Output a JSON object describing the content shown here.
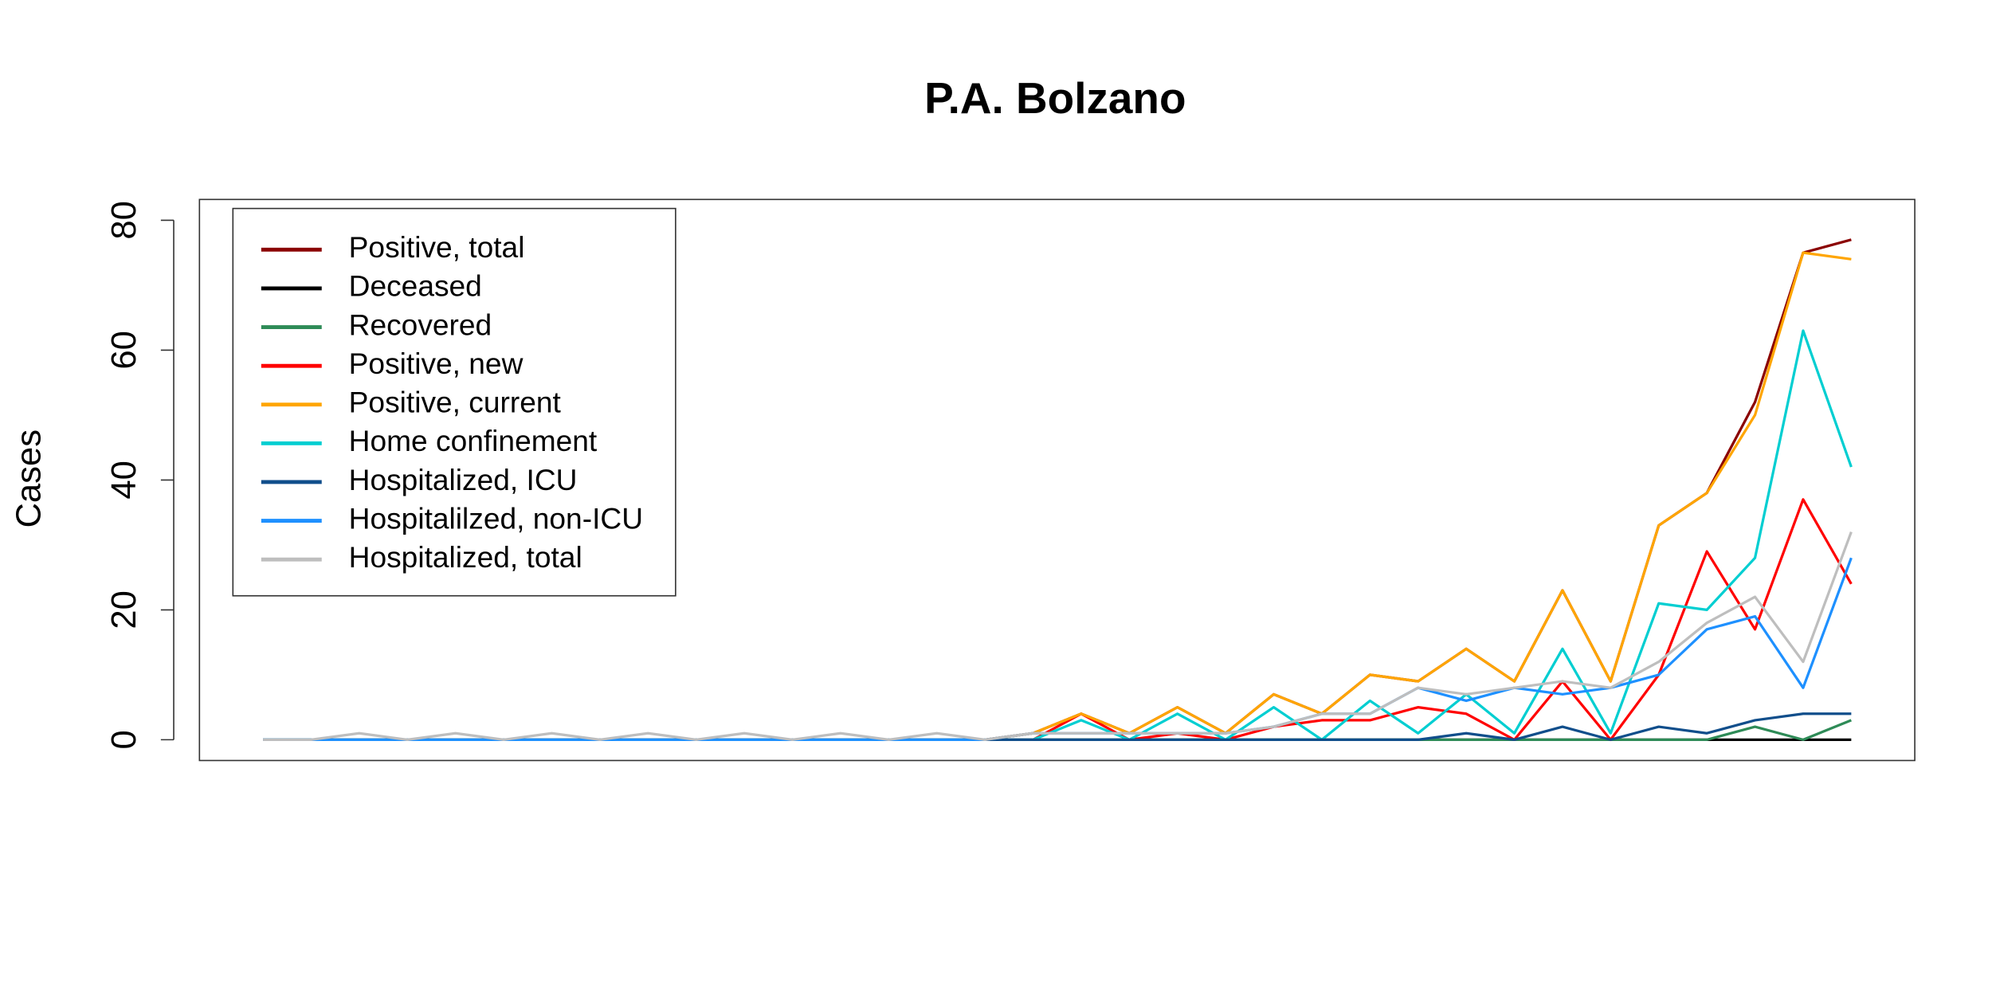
{
  "chart_data": {
    "type": "line",
    "title": "P.A. Bolzano",
    "y_label": "Cases",
    "categories": [
      null,
      null,
      null,
      null,
      null,
      null,
      null,
      null,
      null,
      null,
      null,
      null,
      null,
      null,
      null,
      null,
      null,
      null,
      null,
      null,
      null,
      null,
      null,
      null,
      null,
      null,
      null,
      null,
      null,
      null,
      null,
      null,
      null,
      null
    ],
    "ylim": [
      -3.2,
      83.2
    ],
    "yticks": [
      0,
      20,
      40,
      60,
      80
    ],
    "legend": "top-left",
    "series": [
      {
        "name": "Positive, total",
        "color": "#8b0000",
        "values": [
          0,
          0,
          0,
          0,
          0,
          0,
          0,
          0,
          0,
          0,
          0,
          0,
          0,
          0,
          0,
          0,
          1,
          4,
          1,
          5,
          1,
          7,
          4,
          10,
          9,
          14,
          9,
          23,
          9,
          33,
          38,
          52,
          75,
          77
        ]
      },
      {
        "name": "Deceased",
        "color": "#000000",
        "values": [
          0,
          0,
          0,
          0,
          0,
          0,
          0,
          0,
          0,
          0,
          0,
          0,
          0,
          0,
          0,
          0,
          0,
          0,
          0,
          0,
          0,
          0,
          0,
          0,
          0,
          0,
          0,
          0,
          0,
          0,
          0,
          0,
          0,
          0
        ]
      },
      {
        "name": "Recovered",
        "color": "#2e8b57",
        "values": [
          0,
          0,
          0,
          0,
          0,
          0,
          0,
          0,
          0,
          0,
          0,
          0,
          0,
          0,
          0,
          0,
          0,
          0,
          0,
          0,
          0,
          0,
          0,
          0,
          0,
          0,
          0,
          0,
          0,
          0,
          0,
          2,
          0,
          3
        ]
      },
      {
        "name": "Positive, new",
        "color": "#ff0000",
        "values": [
          0,
          0,
          0,
          0,
          0,
          0,
          0,
          0,
          0,
          0,
          0,
          0,
          0,
          0,
          0,
          0,
          0,
          4,
          0,
          1,
          0,
          2,
          3,
          3,
          5,
          4,
          0,
          9,
          0,
          10,
          29,
          17,
          37,
          24
        ]
      },
      {
        "name": "Positive, current",
        "color": "#ffa500",
        "values": [
          0,
          0,
          0,
          0,
          0,
          0,
          0,
          0,
          0,
          0,
          0,
          0,
          0,
          0,
          0,
          0,
          1,
          4,
          1,
          5,
          1,
          7,
          4,
          10,
          9,
          14,
          9,
          23,
          9,
          33,
          38,
          50,
          75,
          74
        ]
      },
      {
        "name": "Home confinement",
        "color": "#00ced1",
        "values": [
          0,
          0,
          0,
          0,
          0,
          0,
          0,
          0,
          0,
          0,
          0,
          0,
          0,
          0,
          0,
          0,
          0,
          3,
          0,
          4,
          0,
          5,
          0,
          6,
          1,
          7,
          1,
          14,
          1,
          21,
          20,
          28,
          63,
          42
        ]
      },
      {
        "name": "Hospitalized, ICU",
        "color": "#104e8b",
        "values": [
          0,
          0,
          0,
          0,
          0,
          0,
          0,
          0,
          0,
          0,
          0,
          0,
          0,
          0,
          0,
          0,
          0,
          0,
          0,
          0,
          0,
          0,
          0,
          0,
          0,
          1,
          0,
          2,
          0,
          2,
          1,
          3,
          4,
          4
        ]
      },
      {
        "name": "Hospitalilzed, non-ICU",
        "color": "#1e90ff",
        "values": [
          0,
          0,
          0,
          0,
          0,
          0,
          0,
          0,
          0,
          0,
          0,
          0,
          0,
          0,
          0,
          0,
          1,
          1,
          1,
          1,
          1,
          2,
          4,
          4,
          8,
          6,
          8,
          7,
          8,
          10,
          17,
          19,
          8,
          28
        ]
      },
      {
        "name": "Hospitalized, total",
        "color": "#bebebe",
        "values": [
          0,
          0,
          1,
          0,
          1,
          0,
          1,
          0,
          1,
          0,
          1,
          0,
          1,
          0,
          1,
          0,
          1,
          1,
          1,
          1,
          1,
          2,
          4,
          4,
          8,
          7,
          8,
          9,
          8,
          12,
          18,
          22,
          12,
          32
        ]
      }
    ]
  }
}
